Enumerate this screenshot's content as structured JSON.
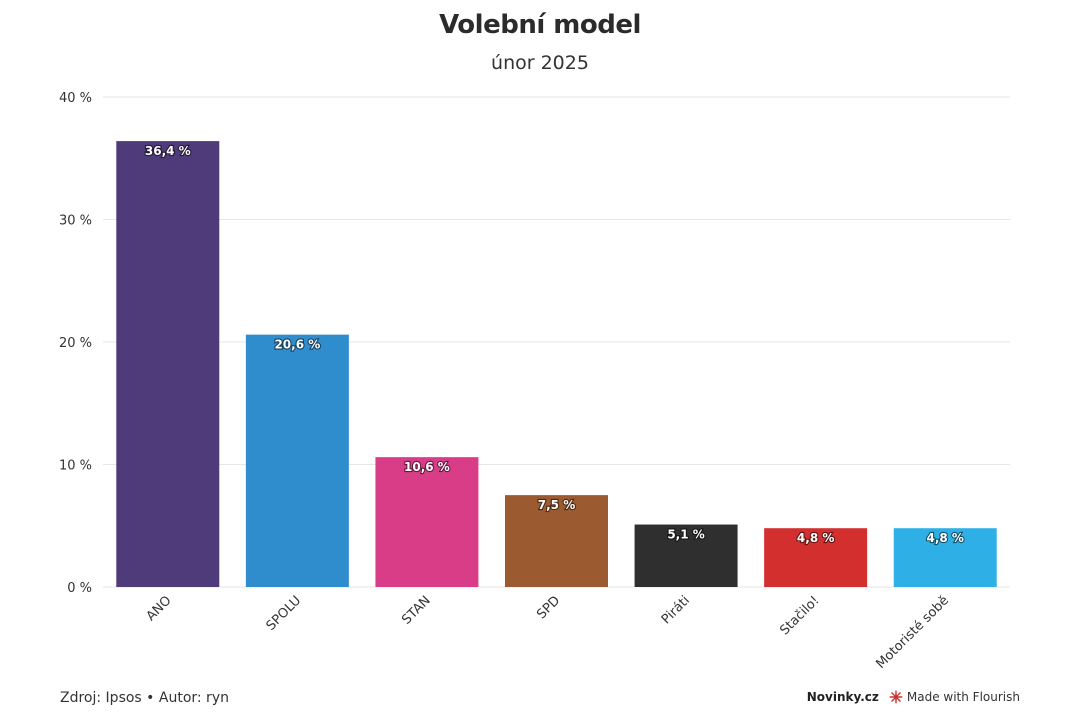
{
  "chart_data": {
    "type": "bar",
    "title": "Volební model",
    "subtitle": "únor 2025",
    "categories": [
      "ANO",
      "SPOLU",
      "STAN",
      "SPD",
      "Piráti",
      "Stačilo!",
      "Motoristé sobě"
    ],
    "values": [
      36.4,
      20.6,
      10.6,
      7.5,
      5.1,
      4.8,
      4.8
    ],
    "value_labels": [
      "36,4 %",
      "20,6 %",
      "10,6 %",
      "7,5 %",
      "5,1 %",
      "4,8 %",
      "4,8 %"
    ],
    "colors": [
      "#4f3a7a",
      "#2f8ccd",
      "#d93d87",
      "#9c5a30",
      "#2f2f2f",
      "#d42f2f",
      "#2eb0e6"
    ],
    "ylim": [
      0,
      40
    ],
    "yticks": [
      0,
      10,
      20,
      30,
      40
    ],
    "ytick_labels": [
      "0 %",
      "10 %",
      "20 %",
      "30 %",
      "40 %"
    ],
    "grid": true
  },
  "footer": {
    "source": "Zdroj: Ipsos • Autor: ryn",
    "brand": "Novinky.cz",
    "made_with": "Made with Flourish"
  }
}
